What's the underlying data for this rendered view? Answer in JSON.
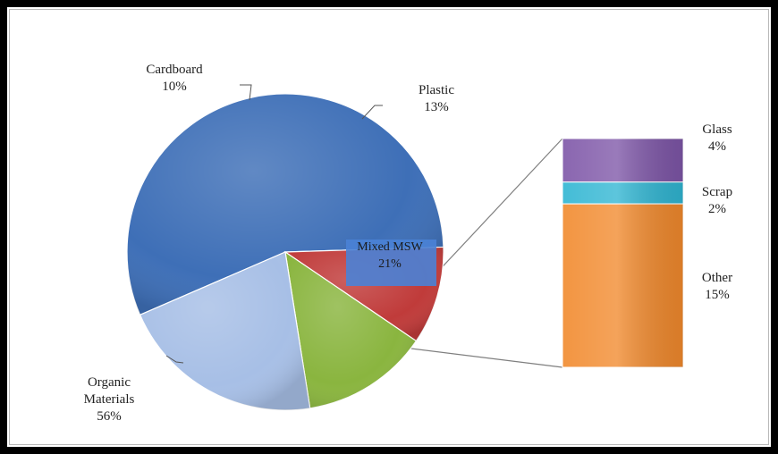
{
  "chart_data": {
    "type": "bar-of-pie",
    "pie": {
      "slices": [
        {
          "name": "Organic Materials",
          "value": 56,
          "label_lines": [
            "Organic",
            "Materials",
            "56%"
          ],
          "color": "#3e6fb7"
        },
        {
          "name": "Cardboard",
          "value": 10,
          "label_lines": [
            "Cardboard",
            "10%"
          ],
          "color": "#c03b3a"
        },
        {
          "name": "Plastic",
          "value": 13,
          "label_lines": [
            "Plastic",
            "13%"
          ],
          "color": "#8ab53f"
        },
        {
          "name": "Mixed MSW",
          "value": 21,
          "label_lines": [
            "Mixed MSW",
            "21%"
          ],
          "color": "#a7bfe6"
        }
      ]
    },
    "bar": {
      "breakdown_of": "Mixed MSW",
      "segments": [
        {
          "name": "Glass",
          "value": 4,
          "label_lines": [
            "Glass",
            "4%"
          ],
          "color": "#7d55a7"
        },
        {
          "name": "Scrap",
          "value": 2,
          "label_lines": [
            "Scrap",
            "2%"
          ],
          "color": "#2fb5d2"
        },
        {
          "name": "Other",
          "value": 15,
          "label_lines": [
            "Other",
            "15%"
          ],
          "color": "#f1892c"
        }
      ]
    },
    "title": "",
    "legend": "none"
  }
}
